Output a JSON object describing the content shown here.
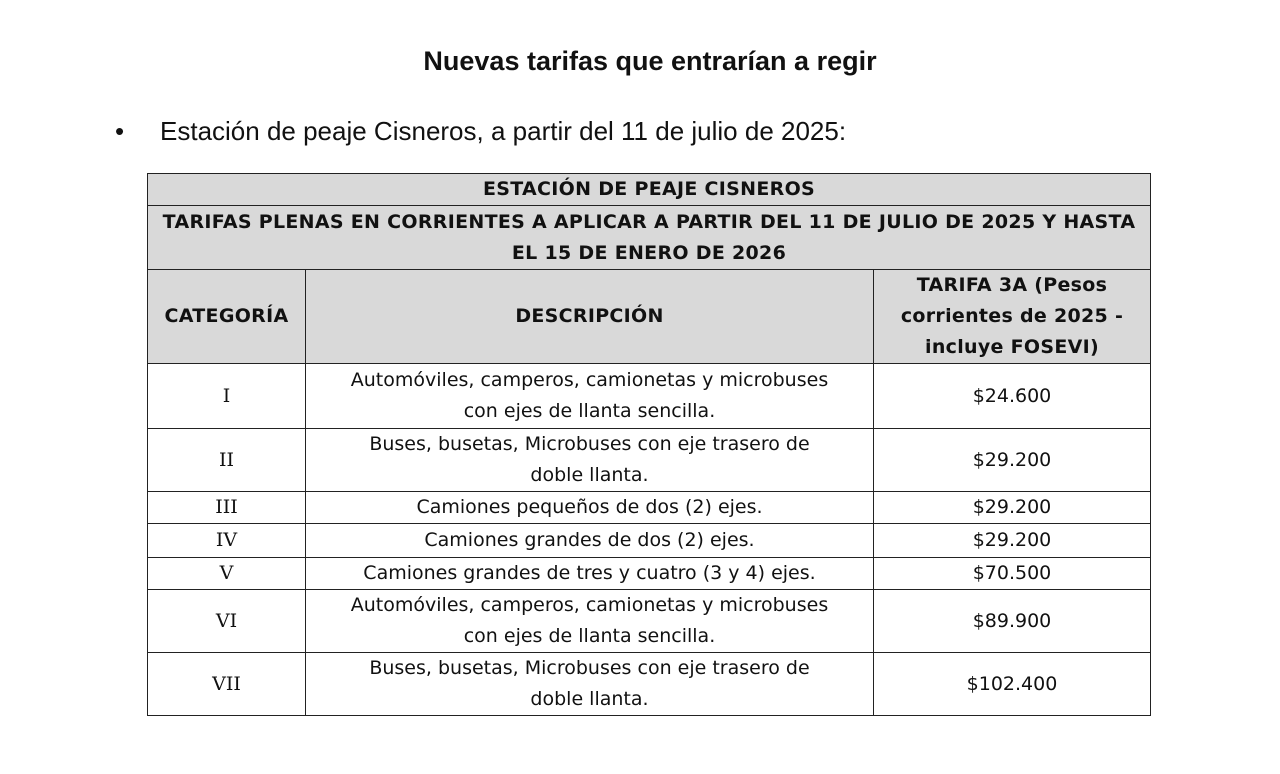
{
  "header": {
    "title": "Nuevas tarifas que entrarían a regir"
  },
  "bullet": "Estación de peaje Cisneros, a partir del 11 de julio de 2025:",
  "table": {
    "title": "ESTACIÓN DE PEAJE CISNEROS",
    "subtitle": "TARIFAS PLENAS EN CORRIENTES A APLICAR A PARTIR DEL 11 DE JULIO DE 2025 Y HASTA EL 15 DE ENERO DE 2026",
    "columns": [
      "CATEGORÍA",
      "DESCRIPCIÓN",
      "TARIFA 3A (Pesos corrientes de 2025 - incluye FOSEVI)"
    ],
    "rows": [
      [
        "I",
        "Automóviles, camperos, camionetas y microbuses con ejes de llanta sencilla.",
        "$24.600"
      ],
      [
        "II",
        "Buses, busetas, Microbuses con eje trasero de doble llanta.",
        "$29.200"
      ],
      [
        "III",
        "Camiones pequeños de dos (2) ejes.",
        "$29.200"
      ],
      [
        "IV",
        "Camiones grandes de dos (2) ejes.",
        "$29.200"
      ],
      [
        "V",
        "Camiones grandes de tres y cuatro (3 y 4) ejes.",
        "$70.500"
      ],
      [
        "VI",
        "Automóviles, camperos, camionetas y microbuses con ejes de llanta sencilla.",
        "$89.900"
      ],
      [
        "VII",
        "Buses, busetas, Microbuses con eje trasero de doble llanta.",
        "$102.400"
      ]
    ]
  }
}
